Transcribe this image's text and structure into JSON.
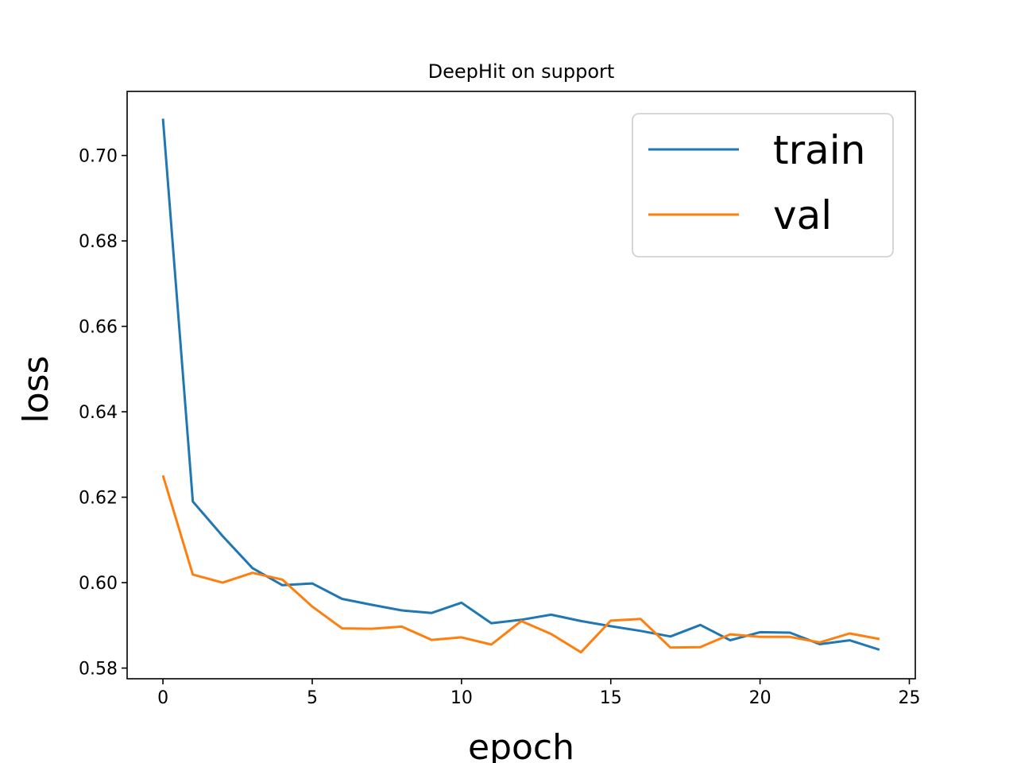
{
  "chart_data": {
    "type": "line",
    "title": "DeepHit on support",
    "xlabel": "epoch",
    "ylabel": "loss",
    "xlim": [
      -1.2,
      25.2
    ],
    "ylim": [
      0.5775,
      0.715
    ],
    "xticks": [
      0,
      5,
      10,
      15,
      20,
      25
    ],
    "yticks": [
      0.58,
      0.6,
      0.62,
      0.64,
      0.66,
      0.68,
      0.7
    ],
    "xtick_labels": [
      "0",
      "5",
      "10",
      "15",
      "20",
      "25"
    ],
    "ytick_labels": [
      "0.58",
      "0.60",
      "0.62",
      "0.64",
      "0.66",
      "0.68",
      "0.70"
    ],
    "grid": false,
    "legend": "top-right",
    "x": [
      0,
      1,
      2,
      3,
      4,
      5,
      6,
      7,
      8,
      9,
      10,
      11,
      12,
      13,
      14,
      15,
      16,
      17,
      18,
      19,
      20,
      21,
      22,
      23,
      24
    ],
    "series": [
      {
        "name": "train",
        "color": "#1f77b4",
        "values": [
          0.7086,
          0.619,
          0.6109,
          0.6034,
          0.5994,
          0.5998,
          0.5962,
          0.5948,
          0.5935,
          0.5929,
          0.5953,
          0.5905,
          0.5913,
          0.5925,
          0.591,
          0.5898,
          0.5887,
          0.5874,
          0.5901,
          0.5865,
          0.5884,
          0.5883,
          0.5856,
          0.5865,
          0.5843
        ]
      },
      {
        "name": "val",
        "color": "#ff7f0e",
        "values": [
          0.6251,
          0.6019,
          0.6,
          0.6023,
          0.6007,
          0.5944,
          0.5893,
          0.5892,
          0.5897,
          0.5866,
          0.5872,
          0.5855,
          0.591,
          0.588,
          0.5837,
          0.5911,
          0.5915,
          0.5848,
          0.5849,
          0.5879,
          0.5873,
          0.5873,
          0.586,
          0.5881,
          0.5868
        ]
      }
    ]
  }
}
